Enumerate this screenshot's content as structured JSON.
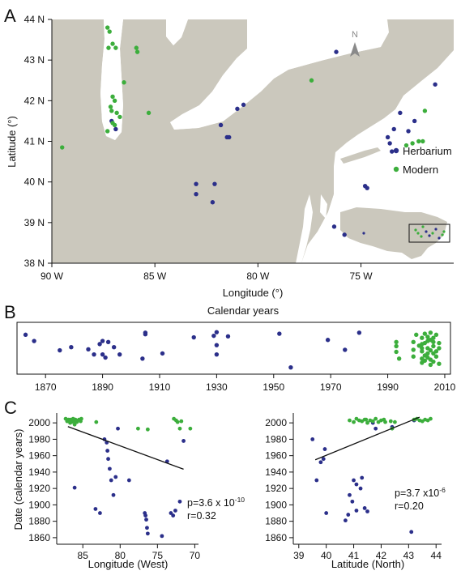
{
  "colors": {
    "herbarium": "#2b2f8a",
    "modern": "#3cae3c",
    "land": "#cbc8bd",
    "regression": "#111111"
  },
  "panels": [
    "A",
    "B",
    "C"
  ],
  "chart_data": [
    {
      "type": "scatter",
      "panel": "A",
      "xlabel": "Longitude (°)",
      "ylabel": "Latitude (°)",
      "x_ticks": [
        "90 W",
        "85 W",
        "80 W",
        "75 W"
      ],
      "y_ticks": [
        "38 N",
        "39 N",
        "40 N",
        "41 N",
        "42 N",
        "43 N",
        "44 N"
      ],
      "xlim": [
        90,
        70.5
      ],
      "ylim": [
        38,
        44
      ],
      "north_label": "N",
      "legend": [
        "Herbarium",
        "Modern"
      ],
      "legend_position": "right",
      "series": [
        {
          "name": "Herbarium",
          "points": [
            [
              87.1,
              41.5
            ],
            [
              86.9,
              41.3
            ],
            [
              83.0,
              39.95
            ],
            [
              83.0,
              39.7
            ],
            [
              82.2,
              39.5
            ],
            [
              82.1,
              39.95
            ],
            [
              81.8,
              41.4
            ],
            [
              81.5,
              41.1
            ],
            [
              81.4,
              41.1
            ],
            [
              81.0,
              41.8
            ],
            [
              80.7,
              41.9
            ],
            [
              76.2,
              43.2
            ],
            [
              76.3,
              38.9
            ],
            [
              75.8,
              38.7
            ],
            [
              74.8,
              39.9
            ],
            [
              74.7,
              39.85
            ],
            [
              73.7,
              41.1
            ],
            [
              73.6,
              40.95
            ],
            [
              73.5,
              40.75
            ],
            [
              73.4,
              41.3
            ],
            [
              73.1,
              41.7
            ],
            [
              72.7,
              41.25
            ],
            [
              72.4,
              41.5
            ],
            [
              71.4,
              42.4
            ]
          ]
        },
        {
          "name": "Modern",
          "points": [
            [
              87.3,
              43.8
            ],
            [
              87.2,
              43.7
            ],
            [
              87.05,
              43.4
            ],
            [
              86.9,
              43.3
            ],
            [
              87.25,
              43.3
            ],
            [
              85.9,
              43.3
            ],
            [
              85.85,
              43.2
            ],
            [
              86.5,
              42.45
            ],
            [
              87.05,
              42.1
            ],
            [
              86.95,
              42.0
            ],
            [
              87.15,
              41.85
            ],
            [
              87.1,
              41.75
            ],
            [
              86.85,
              41.7
            ],
            [
              86.7,
              41.6
            ],
            [
              87.05,
              41.45
            ],
            [
              86.95,
              41.4
            ],
            [
              87.3,
              41.25
            ],
            [
              85.3,
              41.7
            ],
            [
              89.5,
              40.85
            ],
            [
              77.4,
              42.5
            ],
            [
              72.8,
              40.9
            ],
            [
              72.5,
              40.95
            ],
            [
              72.2,
              41.0
            ],
            [
              72.0,
              41.0
            ],
            [
              71.9,
              41.75
            ]
          ]
        }
      ]
    },
    {
      "type": "scatter",
      "panel": "B",
      "title": "Calendar years",
      "x_ticks": [
        "1870",
        "1890",
        "1910",
        "1930",
        "1950",
        "1970",
        "1990",
        "2010"
      ],
      "xlim": [
        1860,
        2012
      ],
      "series": [
        {
          "name": "Herbarium",
          "points": [
            [
              1863,
              0.76
            ],
            [
              1866,
              0.64
            ],
            [
              1875,
              0.46
            ],
            [
              1879,
              0.52
            ],
            [
              1885,
              0.48
            ],
            [
              1887,
              0.38
            ],
            [
              1889,
              0.58
            ],
            [
              1890,
              0.64
            ],
            [
              1890,
              0.38
            ],
            [
              1891,
              0.32
            ],
            [
              1892,
              0.62
            ],
            [
              1894,
              0.52
            ],
            [
              1896,
              0.38
            ],
            [
              1904,
              0.3
            ],
            [
              1905,
              0.8
            ],
            [
              1905,
              0.77
            ],
            [
              1911,
              0.4
            ],
            [
              1922,
              0.71
            ],
            [
              1929,
              0.74
            ],
            [
              1930,
              0.81
            ],
            [
              1930,
              0.56
            ],
            [
              1930,
              0.38
            ],
            [
              1934,
              0.73
            ],
            [
              1952,
              0.78
            ],
            [
              1956,
              0.13
            ],
            [
              1969,
              0.66
            ],
            [
              1975,
              0.47
            ],
            [
              1980,
              0.8
            ]
          ]
        },
        {
          "name": "Modern",
          "points": [
            [
              1993,
              0.62
            ],
            [
              1993,
              0.54
            ],
            [
              1993,
              0.43
            ],
            [
              1994,
              0.3
            ],
            [
              1999,
              0.62
            ],
            [
              1999,
              0.47
            ],
            [
              1999,
              0.34
            ],
            [
              2000,
              0.76
            ],
            [
              2001,
              0.55
            ],
            [
              2002,
              0.3
            ],
            [
              2002,
              0.7
            ],
            [
              2002,
              0.58
            ],
            [
              2002,
              0.44
            ],
            [
              2002,
              0.22
            ],
            [
              2003,
              0.78
            ],
            [
              2003,
              0.36
            ],
            [
              2003,
              0.26
            ],
            [
              2004,
              0.64
            ],
            [
              2004,
              0.5
            ],
            [
              2004,
              0.72
            ],
            [
              2004,
              0.32
            ],
            [
              2005,
              0.8
            ],
            [
              2005,
              0.46
            ],
            [
              2005,
              0.28
            ],
            [
              2005,
              0.18
            ],
            [
              2006,
              0.7
            ],
            [
              2006,
              0.62
            ],
            [
              2006,
              0.54
            ],
            [
              2006,
              0.4
            ],
            [
              2006,
              0.24
            ],
            [
              2007,
              0.76
            ],
            [
              2007,
              0.44
            ],
            [
              2007,
              0.34
            ],
            [
              2008,
              0.6
            ],
            [
              2008,
              0.5
            ],
            [
              2008,
              0.2
            ],
            [
              2002,
              0.5
            ],
            [
              2003,
              0.6
            ],
            [
              2004,
              0.4
            ],
            [
              2005,
              0.66
            ]
          ]
        }
      ]
    },
    {
      "type": "scatter",
      "panel": "C",
      "subplot": "longitude",
      "xlabel": "Longitude (West)",
      "ylabel": "Date (calendar years)",
      "x_ticks": [
        "85",
        "80",
        "75",
        "70"
      ],
      "y_ticks": [
        "1860",
        "1880",
        "1900",
        "1920",
        "1940",
        "1960",
        "1980",
        "2000"
      ],
      "xlim": [
        88.5,
        69.5
      ],
      "ylim": [
        1852,
        2012
      ],
      "stats": {
        "p": "p=3.6 x 10",
        "p_exp": "-10",
        "r": "r=0.32"
      },
      "regression": {
        "x": [
          87,
          71.5
        ],
        "y": [
          1995.5,
          1943.5
        ]
      },
      "series": [
        {
          "name": "Herbarium",
          "points": [
            [
              86.1,
              1921
            ],
            [
              83.3,
              1895
            ],
            [
              82.7,
              1890
            ],
            [
              82.1,
              1980
            ],
            [
              81.8,
              1976
            ],
            [
              81.7,
              1966
            ],
            [
              81.6,
              1956
            ],
            [
              81.4,
              1944
            ],
            [
              81.2,
              1930
            ],
            [
              80.9,
              1912
            ],
            [
              80.6,
              1934
            ],
            [
              80.3,
              1993
            ],
            [
              78.8,
              1930
            ],
            [
              76.7,
              1890
            ],
            [
              76.6,
              1887
            ],
            [
              76.5,
              1882
            ],
            [
              76.4,
              1872
            ],
            [
              76.3,
              1865
            ],
            [
              74.4,
              1862
            ],
            [
              73.7,
              1953
            ],
            [
              73.2,
              1890
            ],
            [
              72.9,
              1887
            ],
            [
              72.6,
              1893
            ],
            [
              72.0,
              1904
            ],
            [
              71.5,
              1978
            ]
          ]
        },
        {
          "name": "Modern",
          "points": [
            [
              87.3,
              2005
            ],
            [
              87.1,
              2002
            ],
            [
              86.9,
              2004
            ],
            [
              86.7,
              2000
            ],
            [
              86.6,
              2004
            ],
            [
              86.5,
              2001
            ],
            [
              86.4,
              2003
            ],
            [
              86.3,
              2005
            ],
            [
              86.2,
              2002
            ],
            [
              86.1,
              1998
            ],
            [
              86.0,
              2004
            ],
            [
              85.9,
              2003
            ],
            [
              85.8,
              2001
            ],
            [
              85.5,
              2004
            ],
            [
              85.3,
              2002
            ],
            [
              85.2,
              2005
            ],
            [
              83.2,
              2001
            ],
            [
              77.6,
              1993
            ],
            [
              76.3,
              1992
            ],
            [
              72.8,
              2005
            ],
            [
              72.5,
              2003
            ],
            [
              72.3,
              2001
            ],
            [
              72.0,
              1993
            ],
            [
              71.8,
              2002
            ],
            [
              70.6,
              1993
            ]
          ]
        }
      ]
    },
    {
      "type": "scatter",
      "panel": "C",
      "subplot": "latitude",
      "xlabel": "Latitude (North)",
      "x_ticks": [
        "39",
        "40",
        "41",
        "42",
        "43",
        "44"
      ],
      "y_ticks": [
        "1860",
        "1880",
        "1900",
        "1920",
        "1940",
        "1960",
        "1980",
        "2000"
      ],
      "xlim": [
        38.8,
        44.2
      ],
      "ylim": [
        1852,
        2012
      ],
      "stats": {
        "p": "p=3.7 x10",
        "p_exp": "-6",
        "r": "r=0.20"
      },
      "regression": {
        "x": [
          39.6,
          43.4
        ],
        "y": [
          1955,
          2007
        ]
      },
      "series": [
        {
          "name": "Herbarium",
          "points": [
            [
              39.5,
              1980
            ],
            [
              39.65,
              1930
            ],
            [
              39.8,
              1952
            ],
            [
              39.9,
              1956
            ],
            [
              39.95,
              1968
            ],
            [
              40.0,
              1890
            ],
            [
              40.7,
              1881
            ],
            [
              40.8,
              1888
            ],
            [
              40.85,
              1912
            ],
            [
              40.95,
              1904
            ],
            [
              41.0,
              1930
            ],
            [
              41.1,
              1893
            ],
            [
              41.1,
              1925
            ],
            [
              41.25,
              1920
            ],
            [
              41.3,
              1933
            ],
            [
              41.4,
              1896
            ],
            [
              41.5,
              1892
            ],
            [
              41.7,
              2000
            ],
            [
              41.8,
              1993
            ],
            [
              43.1,
              1867
            ],
            [
              43.2,
              2003
            ],
            [
              42.4,
              1995
            ]
          ]
        },
        {
          "name": "Modern",
          "points": [
            [
              40.85,
              2003
            ],
            [
              41.0,
              2001
            ],
            [
              41.1,
              2005
            ],
            [
              41.2,
              2003
            ],
            [
              41.3,
              2002
            ],
            [
              41.4,
              2004
            ],
            [
              41.5,
              2000
            ],
            [
              41.6,
              2003
            ],
            [
              41.7,
              2002
            ],
            [
              41.8,
              2005
            ],
            [
              41.9,
              2001
            ],
            [
              42.0,
              2003
            ],
            [
              42.1,
              2004
            ],
            [
              42.15,
              2001
            ],
            [
              42.35,
              2002
            ],
            [
              42.4,
              1993
            ],
            [
              42.5,
              2001
            ],
            [
              43.2,
              2004
            ],
            [
              43.3,
              2005
            ],
            [
              43.4,
              2003
            ],
            [
              43.5,
              2002
            ],
            [
              43.6,
              2004
            ],
            [
              43.7,
              2003
            ],
            [
              43.8,
              2005
            ],
            [
              41.45,
              2004
            ]
          ]
        }
      ]
    }
  ]
}
